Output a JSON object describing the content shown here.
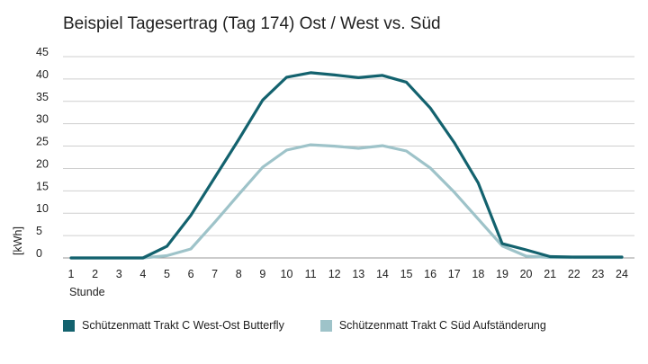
{
  "chart_data": {
    "type": "line",
    "title": "Beispiel Tagesertrag (Tag 174) Ost / West vs. Süd",
    "xlabel": "Stunde",
    "ylabel": "[kWh]",
    "ylim": [
      0,
      45
    ],
    "yticks": [
      0,
      5,
      10,
      15,
      20,
      25,
      30,
      35,
      40,
      45
    ],
    "grid": true,
    "legend_position": "bottom",
    "categories": [
      "1",
      "2",
      "3",
      "4",
      "5",
      "6",
      "7",
      "8",
      "9",
      "10",
      "11",
      "12",
      "13",
      "14",
      "15",
      "16",
      "17",
      "18",
      "19",
      "20",
      "21",
      "22",
      "23",
      "24"
    ],
    "series": [
      {
        "name": "Schützenmatt Trakt C West-Ost Butterfly",
        "color": "#13626e",
        "values": [
          0,
          0,
          0,
          0,
          2.6,
          9.5,
          18.0,
          26.5,
          35.3,
          40.4,
          41.4,
          40.9,
          40.3,
          40.8,
          39.3,
          33.5,
          25.8,
          16.8,
          3.2,
          1.8,
          0.3,
          0.2,
          0.2,
          0.2
        ]
      },
      {
        "name": "Schützenmatt Trakt C Süd Aufständerung",
        "color": "#9ec3c9",
        "values": [
          0,
          0,
          0,
          0,
          0.5,
          2.0,
          8.0,
          14.2,
          20.3,
          24.1,
          25.3,
          25.0,
          24.5,
          25.1,
          23.9,
          20.1,
          14.7,
          8.7,
          2.7,
          0.4,
          0.1,
          0.1,
          0.1,
          0.1
        ]
      }
    ]
  }
}
